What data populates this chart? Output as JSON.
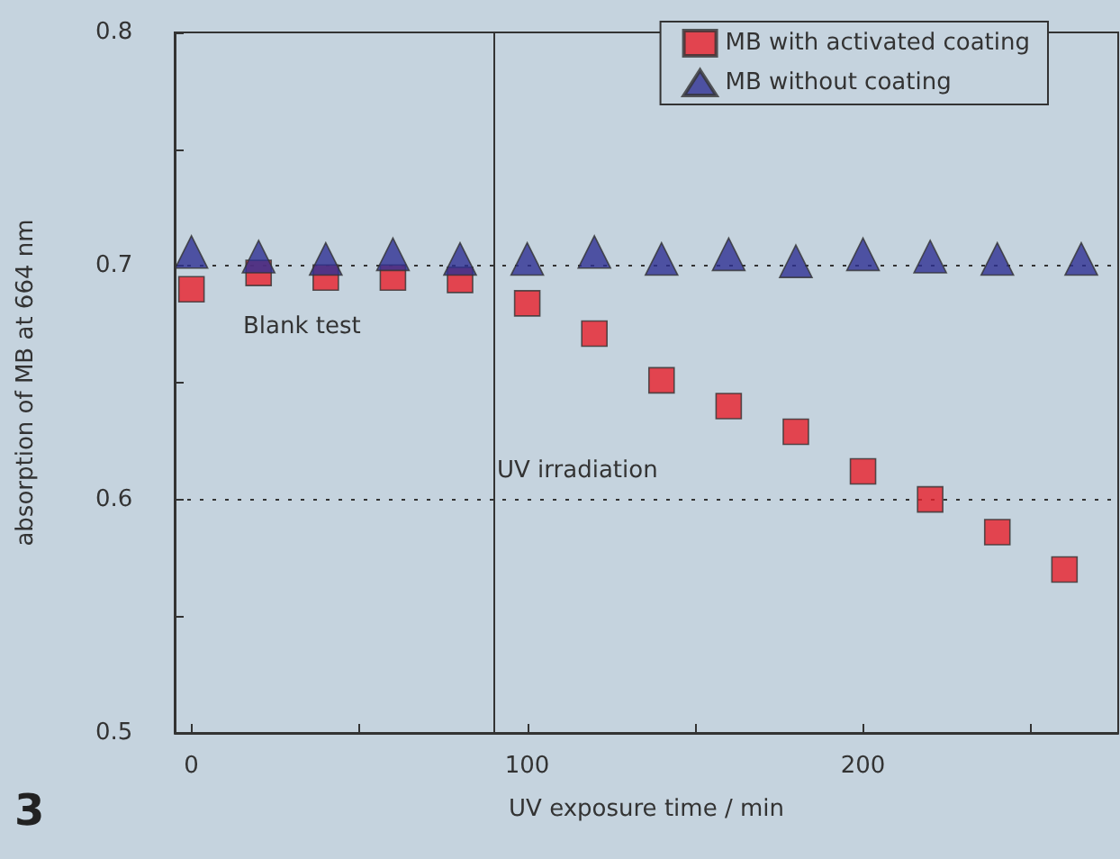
{
  "chart_data": {
    "type": "scatter",
    "xlabel": "UV exposure time / min",
    "ylabel": "absorption of MB at 664 nm",
    "xlim": [
      -5,
      276
    ],
    "xticks": [
      0,
      {
        "value": 50,
        "label": null
      },
      100,
      {
        "value": 150,
        "label": null
      },
      200,
      {
        "value": 250,
        "label": null
      }
    ],
    "ylim": [
      0.5,
      0.8
    ],
    "yticks": [
      0.5,
      {
        "value": 0.55,
        "label": null
      },
      0.6,
      {
        "value": 0.65,
        "label": null
      },
      0.7,
      {
        "value": 0.75,
        "label": null
      },
      0.8
    ],
    "legend": "top right",
    "grid": false,
    "series": [
      {
        "name": "MB with activated coating",
        "color": "#e8202a",
        "marker": "square",
        "x": [
          0,
          20,
          40,
          60,
          80,
          100,
          120,
          140,
          160,
          180,
          200,
          220,
          240,
          260
        ],
        "values": [
          0.69,
          0.697,
          0.695,
          0.695,
          0.694,
          0.684,
          0.671,
          0.651,
          0.64,
          0.629,
          0.612,
          0.6,
          0.586,
          0.57
        ]
      },
      {
        "name": "MB without coating",
        "color": "#2e3192",
        "marker": "triangle",
        "x": [
          0,
          20,
          40,
          60,
          80,
          100,
          120,
          140,
          160,
          180,
          200,
          220,
          240,
          265
        ],
        "values": [
          0.706,
          0.704,
          0.703,
          0.705,
          0.703,
          0.703,
          0.706,
          0.703,
          0.705,
          0.702,
          0.705,
          0.704,
          0.703,
          0.703
        ]
      }
    ],
    "ref_lines": [
      {
        "axis": "y",
        "value": 0.7,
        "line_style": "dotted",
        "color": "#333333"
      },
      {
        "axis": "y",
        "value": 0.6,
        "line_style": "dotted",
        "color": "#333333"
      },
      {
        "axis": "x",
        "value": 90,
        "line_style": "solid",
        "color": "#333333"
      }
    ],
    "annotations": [
      "Blank test",
      "UV irradiation",
      "3"
    ]
  }
}
